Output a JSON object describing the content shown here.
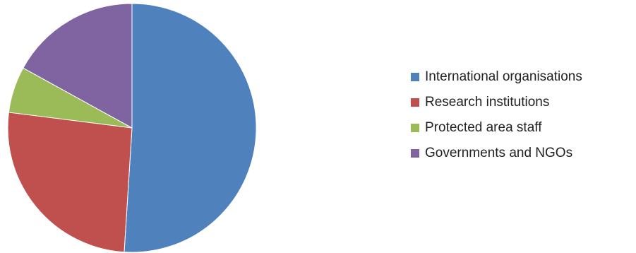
{
  "chart_data": {
    "type": "pie",
    "title": "",
    "categories": [
      "International organisations",
      "Research institutions",
      "Protected area staff",
      "Governments and NGOs"
    ],
    "values": [
      51,
      26,
      6,
      17
    ],
    "colors": [
      "#4F81BD",
      "#C0504D",
      "#9BBB59",
      "#8064A2"
    ],
    "start_angle_deg": 0,
    "direction": "clockwise",
    "legend": "right"
  }
}
